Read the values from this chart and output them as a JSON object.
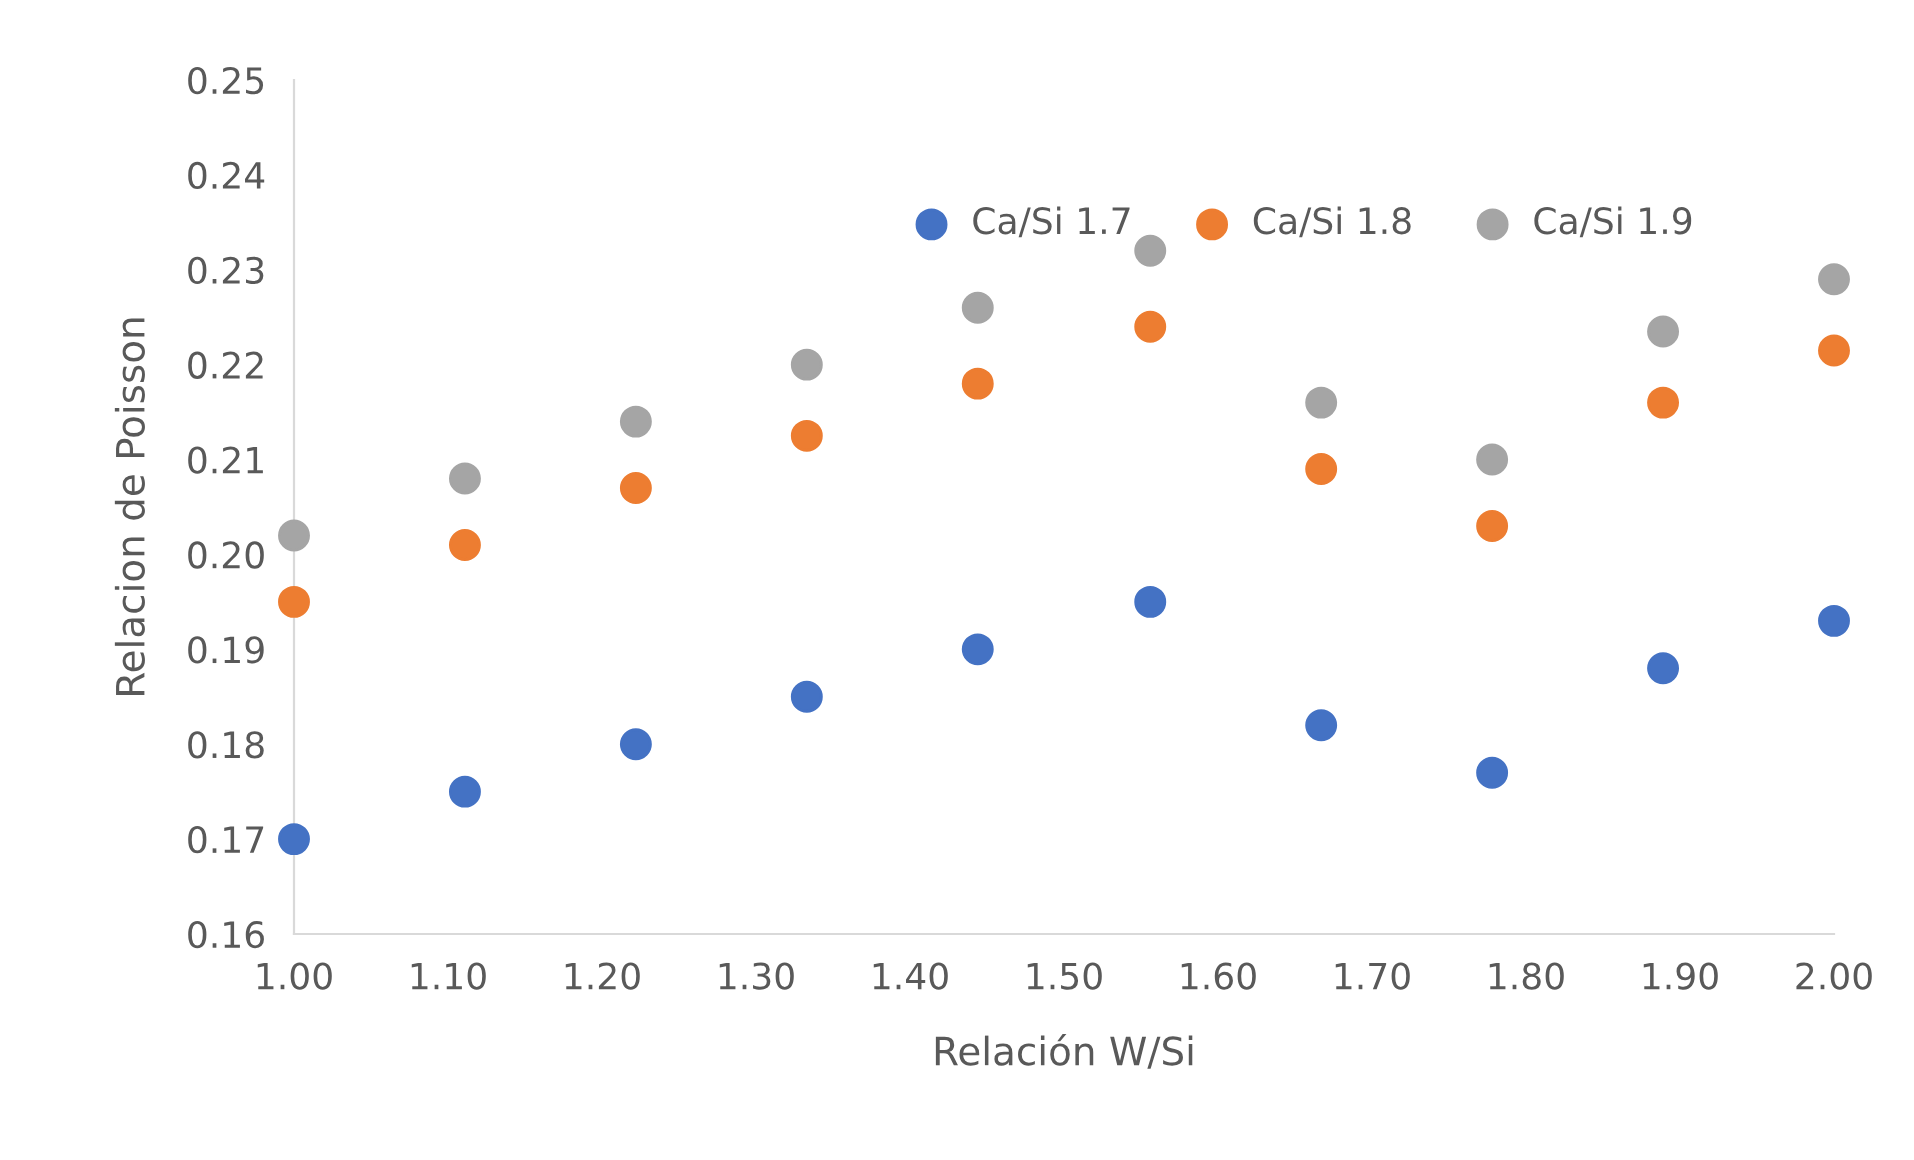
{
  "chart_data": {
    "type": "scatter",
    "xlabel": "Relación W/Si",
    "ylabel": "Relacion de Poisson",
    "x": [
      1.0,
      1.111,
      1.222,
      1.333,
      1.444,
      1.556,
      1.667,
      1.778,
      1.889,
      2.0
    ],
    "series": [
      {
        "name": "Ca/Si 1.7",
        "color": "#4472c4",
        "values": [
          0.17,
          0.175,
          0.18,
          0.185,
          0.19,
          0.195,
          0.182,
          0.177,
          0.188,
          0.193
        ]
      },
      {
        "name": "Ca/Si 1.8",
        "color": "#ed7d31",
        "values": [
          0.195,
          0.201,
          0.207,
          0.2125,
          0.218,
          0.224,
          0.209,
          0.203,
          0.216,
          0.2215
        ]
      },
      {
        "name": "Ca/Si 1.9",
        "color": "#a5a5a5",
        "values": [
          0.202,
          0.208,
          0.214,
          0.22,
          0.226,
          0.232,
          0.216,
          0.21,
          0.2235,
          0.229
        ]
      }
    ],
    "xlim": [
      1.0,
      2.0
    ],
    "xticks": [
      {
        "value": 1.0,
        "label": "1.00"
      },
      {
        "value": 1.1,
        "label": "1.10"
      },
      {
        "value": 1.2,
        "label": "1.20"
      },
      {
        "value": 1.3,
        "label": "1.30"
      },
      {
        "value": 1.4,
        "label": "1.40"
      },
      {
        "value": 1.5,
        "label": "1.50"
      },
      {
        "value": 1.6,
        "label": "1.60"
      },
      {
        "value": 1.7,
        "label": "1.70"
      },
      {
        "value": 1.8,
        "label": "1.80"
      },
      {
        "value": 1.9,
        "label": "1.90"
      },
      {
        "value": 2.0,
        "label": "2.00"
      }
    ],
    "ylim": [
      0.16,
      0.25
    ],
    "yticks": [
      {
        "value": 0.16,
        "label": "0.16"
      },
      {
        "value": 0.17,
        "label": "0.17"
      },
      {
        "value": 0.18,
        "label": "0.18"
      },
      {
        "value": 0.19,
        "label": "0.19"
      },
      {
        "value": 0.2,
        "label": "0.20"
      },
      {
        "value": 0.21,
        "label": "0.21"
      },
      {
        "value": 0.22,
        "label": "0.22"
      },
      {
        "value": 0.23,
        "label": "0.23"
      },
      {
        "value": 0.24,
        "label": "0.24"
      },
      {
        "value": 0.25,
        "label": "0.25"
      }
    ],
    "grid": false,
    "legend": "top right",
    "marker": "circle"
  }
}
